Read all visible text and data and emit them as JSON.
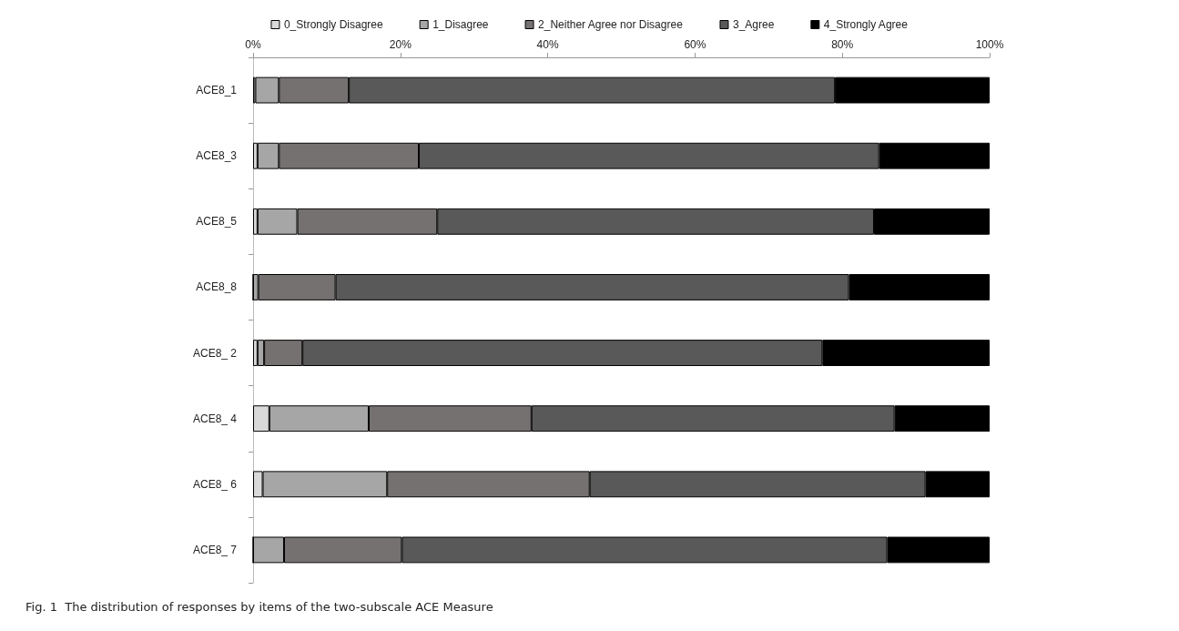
{
  "chart_data": {
    "type": "bar",
    "orientation": "horizontal",
    "stacked": true,
    "legend": "top",
    "grid": false,
    "categories": [
      "ACE8_1",
      "ACE8_3",
      "ACE8_5",
      "ACE8_8",
      "ACE8_ 2",
      "ACE8_ 4",
      "ACE8_ 6",
      "ACE8_ 7"
    ],
    "xlim": [
      0,
      100
    ],
    "xticks": [
      {
        "value": 0,
        "label": "0%"
      },
      {
        "value": 20,
        "label": "20%"
      },
      {
        "value": 40,
        "label": "40%"
      },
      {
        "value": 60,
        "label": "60%"
      },
      {
        "value": 80,
        "label": "80%"
      },
      {
        "value": 100,
        "label": "100%"
      }
    ],
    "series": [
      {
        "name": "0_Strongly Disagree",
        "color": "#d9d9d9",
        "values": [
          0.3,
          0.6,
          0.6,
          0,
          0.6,
          2.2,
          1.3,
          0
        ]
      },
      {
        "name": "1_Disagree",
        "color": "#a6a6a6",
        "values": [
          3.2,
          2.9,
          5.4,
          0.7,
          0.9,
          13.5,
          16.9,
          4.2
        ]
      },
      {
        "name": "2_Neither Agree nor Disagree",
        "color": "#767171",
        "values": [
          9.5,
          19.0,
          19.0,
          10.5,
          5.2,
          22.1,
          27.5,
          16.0
        ]
      },
      {
        "name": "3_Agree",
        "color": "#595959",
        "values": [
          66.0,
          62.5,
          59.3,
          69.7,
          70.6,
          49.3,
          45.6,
          65.9
        ]
      },
      {
        "name": "4_Strongly Agree",
        "color": "#000000",
        "values": [
          21.0,
          15.0,
          15.7,
          19.1,
          22.7,
          12.9,
          8.7,
          13.9
        ]
      }
    ],
    "annotations": [
      "Fig. 1  The distribution of responses by items of the two-subscale ACE Measure"
    ]
  }
}
